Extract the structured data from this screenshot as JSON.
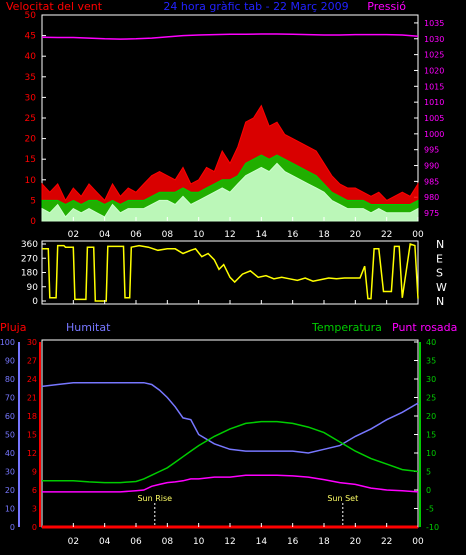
{
  "header": {
    "left_label": "Velocitat del vent",
    "title": "24 hora gràfic tab - 22 Març 2009",
    "right_label": "Pressió"
  },
  "x_ticks": [
    "02",
    "04",
    "06",
    "08",
    "10",
    "12",
    "14",
    "16",
    "18",
    "20",
    "22",
    "00"
  ],
  "colors": {
    "wind_gust": "#ff0000",
    "wind_avg": "#00cc00",
    "wind_speed": "#ccffcc",
    "pressure": "#ff00ff",
    "direction": "#ffff00",
    "rain": "#ff0000",
    "humidity": "#7777ff",
    "temperature": "#00cc00",
    "dewpoint": "#ff00ff",
    "sun_label": "#ffff66"
  },
  "chart_data": [
    {
      "type": "line",
      "name": "wind-and-pressure",
      "left_axis": {
        "label": "Velocitat del vent",
        "ticks": [
          0,
          5,
          10,
          15,
          20,
          25,
          30,
          35,
          40,
          45,
          50
        ],
        "ylim": [
          0,
          50
        ]
      },
      "right_axis": {
        "label": "Pressió",
        "ticks": [
          975,
          980,
          985,
          990,
          995,
          1000,
          1005,
          1010,
          1015,
          1020,
          1025,
          1030,
          1035
        ],
        "ylim": [
          972.5,
          1037.5
        ]
      },
      "x_range_hours": [
        0,
        24
      ],
      "series": [
        {
          "key": "gust",
          "axis": "left",
          "x": [
            0,
            0.5,
            1,
            1.5,
            2,
            2.5,
            3,
            3.5,
            4,
            4.5,
            5,
            5.5,
            6,
            6.5,
            7,
            7.5,
            8,
            8.5,
            9,
            9.5,
            10,
            10.5,
            11,
            11.5,
            12,
            12.5,
            13,
            13.5,
            14,
            14.5,
            15,
            15.5,
            16,
            16.5,
            17,
            17.5,
            18,
            18.5,
            19,
            19.5,
            20,
            20.5,
            21,
            21.5,
            22,
            22.5,
            23,
            23.5,
            24
          ],
          "y": [
            9,
            7,
            9,
            5,
            8,
            6,
            9,
            7,
            5,
            9,
            6,
            8,
            7,
            9,
            11,
            12,
            11,
            10,
            13,
            9,
            10,
            13,
            12,
            17,
            14,
            18,
            24,
            25,
            28,
            23,
            24,
            21,
            20,
            19,
            18,
            17,
            14,
            11,
            9,
            8,
            8,
            7,
            6,
            7,
            5,
            6,
            7,
            6,
            9
          ]
        },
        {
          "key": "average",
          "axis": "left",
          "x": [
            0,
            0.5,
            1,
            1.5,
            2,
            2.5,
            3,
            3.5,
            4,
            4.5,
            5,
            5.5,
            6,
            6.5,
            7,
            7.5,
            8,
            8.5,
            9,
            9.5,
            10,
            10.5,
            11,
            11.5,
            12,
            12.5,
            13,
            13.5,
            14,
            14.5,
            15,
            15.5,
            16,
            16.5,
            17,
            17.5,
            18,
            18.5,
            19,
            19.5,
            20,
            20.5,
            21,
            21.5,
            22,
            22.5,
            23,
            23.5,
            24
          ],
          "y": [
            5,
            5,
            5,
            4,
            5,
            4,
            5,
            5,
            4,
            5,
            4,
            5,
            5,
            5,
            6,
            7,
            7,
            7,
            8,
            7,
            7,
            8,
            9,
            10,
            10,
            11,
            14,
            15,
            16,
            15,
            16,
            15,
            14,
            13,
            12,
            11,
            9,
            7,
            6,
            5,
            5,
            5,
            4,
            4,
            4,
            4,
            4,
            4,
            5
          ]
        },
        {
          "key": "speed",
          "axis": "left",
          "x": [
            0,
            0.5,
            1,
            1.5,
            2,
            2.5,
            3,
            3.5,
            4,
            4.5,
            5,
            5.5,
            6,
            6.5,
            7,
            7.5,
            8,
            8.5,
            9,
            9.5,
            10,
            10.5,
            11,
            11.5,
            12,
            12.5,
            13,
            13.5,
            14,
            14.5,
            15,
            15.5,
            16,
            16.5,
            17,
            17.5,
            18,
            18.5,
            19,
            19.5,
            20,
            20.5,
            21,
            21.5,
            22,
            22.5,
            23,
            23.5,
            24
          ],
          "y": [
            3,
            2,
            4,
            1,
            3,
            2,
            3,
            2,
            1,
            4,
            2,
            3,
            3,
            3,
            4,
            5,
            5,
            4,
            6,
            4,
            5,
            6,
            7,
            8,
            7,
            9,
            11,
            12,
            13,
            12,
            14,
            12,
            11,
            10,
            9,
            8,
            7,
            5,
            4,
            3,
            3,
            3,
            2,
            3,
            2,
            2,
            2,
            2,
            3
          ]
        },
        {
          "key": "pressure",
          "axis": "right",
          "x": [
            0,
            1,
            2,
            3,
            4,
            5,
            6,
            7,
            8,
            9,
            10,
            11,
            12,
            13,
            14,
            15,
            16,
            17,
            18,
            19,
            20,
            21,
            22,
            23,
            24
          ],
          "y": [
            1030.5,
            1030.4,
            1030.4,
            1030.2,
            1030.0,
            1029.9,
            1030.0,
            1030.2,
            1030.6,
            1031.0,
            1031.2,
            1031.3,
            1031.4,
            1031.4,
            1031.5,
            1031.5,
            1031.4,
            1031.3,
            1031.2,
            1031.2,
            1031.3,
            1031.3,
            1031.3,
            1031.2,
            1030.8
          ]
        }
      ]
    },
    {
      "type": "line",
      "name": "wind-direction",
      "left_axis": {
        "ticks": [
          0,
          90,
          180,
          270,
          360
        ],
        "ylim": [
          0,
          360
        ]
      },
      "right_axis": {
        "ticks": [
          "N",
          "W",
          "S",
          "E",
          "N"
        ]
      },
      "x_range_hours": [
        0,
        24
      ],
      "series": [
        {
          "key": "direction",
          "x": [
            0,
            0.4,
            0.5,
            0.9,
            1.0,
            1.4,
            1.5,
            2.0,
            2.1,
            2.8,
            2.9,
            3.3,
            3.4,
            4.1,
            4.2,
            5.2,
            5.3,
            5.6,
            5.7,
            6.2,
            6.8,
            7.4,
            8.0,
            8.5,
            9.0,
            9.5,
            9.8,
            10.2,
            10.6,
            11.0,
            11.3,
            11.6,
            12.0,
            12.3,
            12.8,
            13.3,
            13.8,
            14.3,
            14.8,
            15.3,
            15.8,
            16.3,
            16.8,
            17.3,
            17.8,
            18.3,
            18.8,
            19.3,
            19.8,
            20.3,
            20.6,
            20.8,
            21.0,
            21.2,
            21.5,
            21.8,
            22.3,
            22.5,
            22.8,
            23.0,
            23.5,
            23.8,
            24
          ],
          "y": [
            330,
            330,
            20,
            20,
            350,
            350,
            340,
            340,
            10,
            10,
            340,
            340,
            0,
            0,
            345,
            345,
            20,
            20,
            340,
            350,
            340,
            320,
            330,
            330,
            300,
            320,
            330,
            280,
            300,
            260,
            200,
            230,
            150,
            120,
            170,
            190,
            150,
            160,
            140,
            150,
            140,
            130,
            145,
            125,
            135,
            145,
            140,
            145,
            145,
            145,
            220,
            15,
            15,
            330,
            330,
            60,
            60,
            345,
            345,
            20,
            360,
            350,
            15
          ]
        }
      ]
    },
    {
      "type": "line",
      "name": "temperature-humidity",
      "legend": [
        "Pluja",
        "Humitat",
        "Temperatura",
        "Punt rosada"
      ],
      "axes": {
        "humidity": {
          "ticks": [
            0,
            10,
            20,
            30,
            40,
            50,
            60,
            70,
            80,
            90,
            100
          ],
          "ylim": [
            0,
            100
          ]
        },
        "rain": {
          "ticks": [
            0,
            3,
            6,
            9,
            12,
            15,
            18,
            21,
            24,
            27,
            30
          ],
          "ylim": [
            0,
            30
          ]
        },
        "temperature": {
          "ticks": [
            -10,
            -5,
            0,
            5,
            10,
            15,
            20,
            25,
            30,
            35,
            40
          ],
          "ylim": [
            -10,
            40
          ]
        }
      },
      "x_range_hours": [
        0,
        24
      ],
      "annotations": [
        {
          "label": "Sun Rise",
          "x": 7.2
        },
        {
          "label": "Sun Set",
          "x": 19.2
        }
      ],
      "series": [
        {
          "key": "humidity",
          "axis": "humidity",
          "x": [
            0,
            1,
            2,
            3,
            4,
            5,
            6,
            6.5,
            7,
            7.5,
            8,
            8.5,
            9,
            9.5,
            10,
            11,
            12,
            13,
            14,
            15,
            16,
            17,
            18,
            19,
            20,
            21,
            22,
            23,
            24
          ],
          "y": [
            76,
            77,
            78,
            78,
            78,
            78,
            78,
            78,
            77,
            74,
            70,
            65,
            59,
            58,
            50,
            45,
            42,
            41,
            41,
            41,
            41,
            40,
            42,
            44,
            49,
            53,
            58,
            62,
            67
          ]
        },
        {
          "key": "temperature",
          "axis": "temperature",
          "x": [
            0,
            1,
            2,
            3,
            4,
            5,
            6,
            6.5,
            7,
            7.5,
            8,
            8.5,
            9,
            9.5,
            10,
            11,
            12,
            13,
            14,
            15,
            16,
            17,
            18,
            19,
            20,
            21,
            22,
            23,
            24
          ],
          "y": [
            2.5,
            2.5,
            2.5,
            2.2,
            2.0,
            2.0,
            2.3,
            3,
            4,
            5,
            6,
            7.5,
            9,
            10.5,
            12,
            14.5,
            16.5,
            18,
            18.5,
            18.5,
            18,
            17,
            15.5,
            13,
            10.5,
            8.5,
            7,
            5.5,
            5
          ]
        },
        {
          "key": "dewpoint",
          "axis": "temperature",
          "x": [
            0,
            1,
            2,
            3,
            4,
            5,
            6,
            6.5,
            7,
            7.5,
            8,
            8.5,
            9,
            9.5,
            10,
            11,
            12,
            13,
            14,
            15,
            16,
            17,
            18,
            19,
            20,
            21,
            22,
            23,
            24
          ],
          "y": [
            -0.5,
            -0.5,
            -0.5,
            -0.5,
            -0.5,
            -0.5,
            -0.2,
            0,
            1,
            1.5,
            2,
            2.2,
            2.5,
            3,
            3,
            3.5,
            3.5,
            4,
            4,
            4,
            3.8,
            3.5,
            2.8,
            2,
            1.5,
            0.5,
            0,
            -0.2,
            -0.5
          ]
        },
        {
          "key": "rain",
          "axis": "rain",
          "x": [
            0,
            24
          ],
          "y": [
            0,
            0
          ]
        }
      ]
    }
  ]
}
